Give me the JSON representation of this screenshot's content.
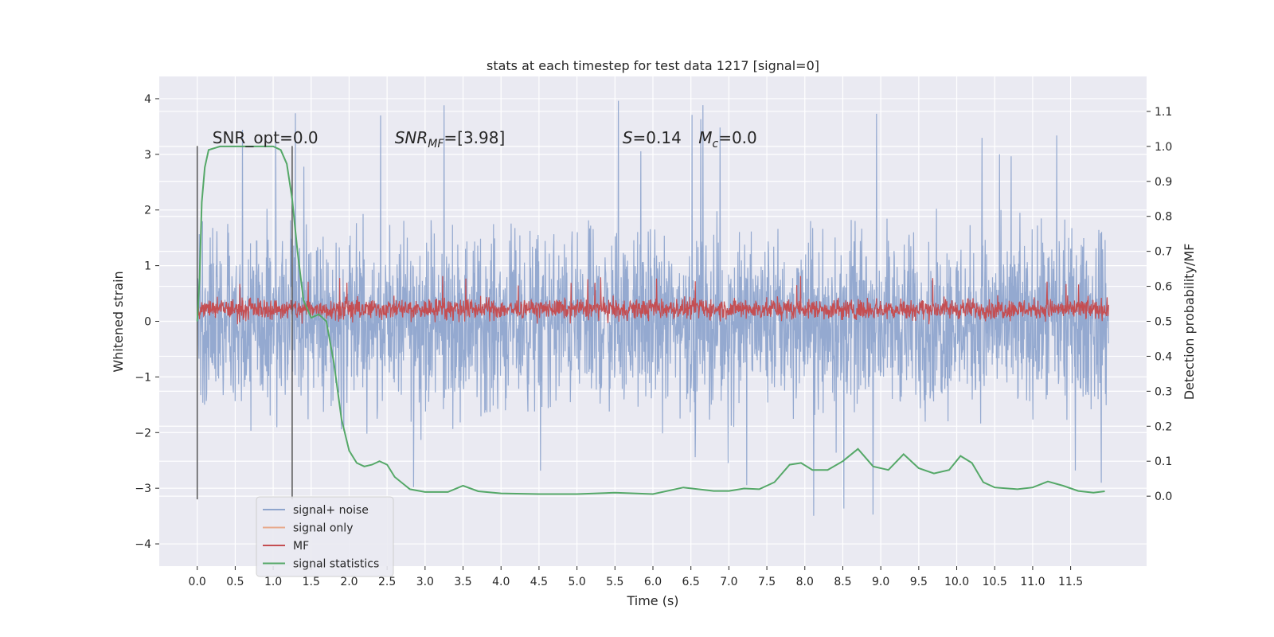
{
  "chart_data": {
    "type": "line",
    "title": "stats at each timestep for test data 1217 [signal=0]",
    "xlabel": "Time (s)",
    "ylabel_left": "Whitened strain",
    "ylabel_right": "Detection probability/MF",
    "xlim": [
      -0.5,
      12.5
    ],
    "ylim_left": [
      -4.4,
      4.4
    ],
    "ylim_right": [
      -0.2,
      1.2
    ],
    "x_ticks": [
      0.0,
      0.5,
      1.0,
      1.5,
      2.0,
      2.5,
      3.0,
      3.5,
      4.0,
      4.5,
      5.0,
      5.5,
      6.0,
      6.5,
      7.0,
      7.5,
      8.0,
      8.5,
      9.0,
      9.5,
      10.0,
      10.5,
      11.0,
      11.5
    ],
    "x_tick_labels": [
      "0.0",
      "0.5",
      "1.0",
      "1.5",
      "2.0",
      "2.5",
      "3.0",
      "3.5",
      "4.0",
      "4.5",
      "5.0",
      "5.5",
      "6.0",
      "6.5",
      "7.0",
      "7.5",
      "8.0",
      "8.5",
      "9.0",
      "9.5",
      "10.0",
      "10.5",
      "11.0",
      "11.5"
    ],
    "y_left_ticks": [
      -4,
      -3,
      -2,
      -1,
      0,
      1,
      2,
      3,
      4
    ],
    "y_left_tick_labels": [
      "−4",
      "−3",
      "−2",
      "−1",
      "0",
      "1",
      "2",
      "3",
      "4"
    ],
    "y_right_ticks": [
      0.0,
      0.1,
      0.2,
      0.3,
      0.4,
      0.5,
      0.6,
      0.7,
      0.8,
      0.9,
      1.0,
      1.1
    ],
    "y_right_tick_labels": [
      "0.0",
      "0.1",
      "0.2",
      "0.3",
      "0.4",
      "0.5",
      "0.6",
      "0.7",
      "0.8",
      "0.9",
      "1.0",
      "1.1"
    ],
    "grid": true,
    "legend_placement": "lower-left",
    "series": [
      {
        "name": "signal+ noise",
        "axis": "left",
        "color": "#8fa5cd",
        "x_range": [
          0.0,
          12.0
        ],
        "typical_range": [
          -1.8,
          1.8
        ],
        "extreme_range": [
          -3.6,
          4.0
        ]
      },
      {
        "name": "signal only",
        "axis": "left",
        "color": "#e8a98c",
        "values": []
      },
      {
        "name": "MF",
        "axis": "right",
        "color": "#c44e52",
        "x_range": [
          0.0,
          12.0
        ],
        "typical_range": [
          0.5,
          0.57
        ],
        "extreme_range": [
          0.49,
          0.63
        ]
      },
      {
        "name": "signal statistics",
        "axis": "right",
        "color": "#55a868",
        "x": [
          0.0,
          0.03,
          0.06,
          0.1,
          0.15,
          0.3,
          0.5,
          0.8,
          1.0,
          1.1,
          1.18,
          1.25,
          1.32,
          1.4,
          1.5,
          1.6,
          1.7,
          1.8,
          1.9,
          2.0,
          2.1,
          2.2,
          2.3,
          2.4,
          2.5,
          2.6,
          2.8,
          3.0,
          3.3,
          3.5,
          3.7,
          4.0,
          4.5,
          5.0,
          5.5,
          6.0,
          6.4,
          6.8,
          7.0,
          7.2,
          7.4,
          7.6,
          7.8,
          7.95,
          8.1,
          8.3,
          8.5,
          8.7,
          8.9,
          9.1,
          9.3,
          9.5,
          9.7,
          9.9,
          10.05,
          10.2,
          10.35,
          10.5,
          10.8,
          11.0,
          11.2,
          11.4,
          11.6,
          11.8,
          11.95
        ],
        "values": [
          0.5,
          0.62,
          0.84,
          0.94,
          0.99,
          1.0,
          1.0,
          1.0,
          1.0,
          0.99,
          0.95,
          0.85,
          0.7,
          0.56,
          0.51,
          0.52,
          0.5,
          0.38,
          0.22,
          0.13,
          0.095,
          0.085,
          0.09,
          0.1,
          0.09,
          0.055,
          0.02,
          0.012,
          0.012,
          0.03,
          0.014,
          0.008,
          0.006,
          0.006,
          0.01,
          0.006,
          0.025,
          0.015,
          0.015,
          0.022,
          0.02,
          0.04,
          0.09,
          0.095,
          0.075,
          0.075,
          0.1,
          0.135,
          0.085,
          0.075,
          0.12,
          0.08,
          0.065,
          0.075,
          0.115,
          0.095,
          0.04,
          0.025,
          0.02,
          0.025,
          0.042,
          0.03,
          0.015,
          0.01,
          0.014
        ]
      }
    ],
    "vertical_lines_x": [
      0.0,
      1.25
    ],
    "annotations": [
      {
        "text": "SNR_opt=0.0",
        "x": 0.2,
        "y": 3.2
      },
      {
        "text": "SNR",
        "sub": "MF",
        "rest": "=[3.98]",
        "italic": true,
        "x": 2.6,
        "y": 3.2
      },
      {
        "text": "S",
        "rest": "=0.14",
        "italic": true,
        "x": 5.6,
        "y": 3.2
      },
      {
        "text": "M",
        "sub": "c",
        "rest": "=0.0",
        "italic": true,
        "x": 6.6,
        "y": 3.2
      }
    ]
  }
}
